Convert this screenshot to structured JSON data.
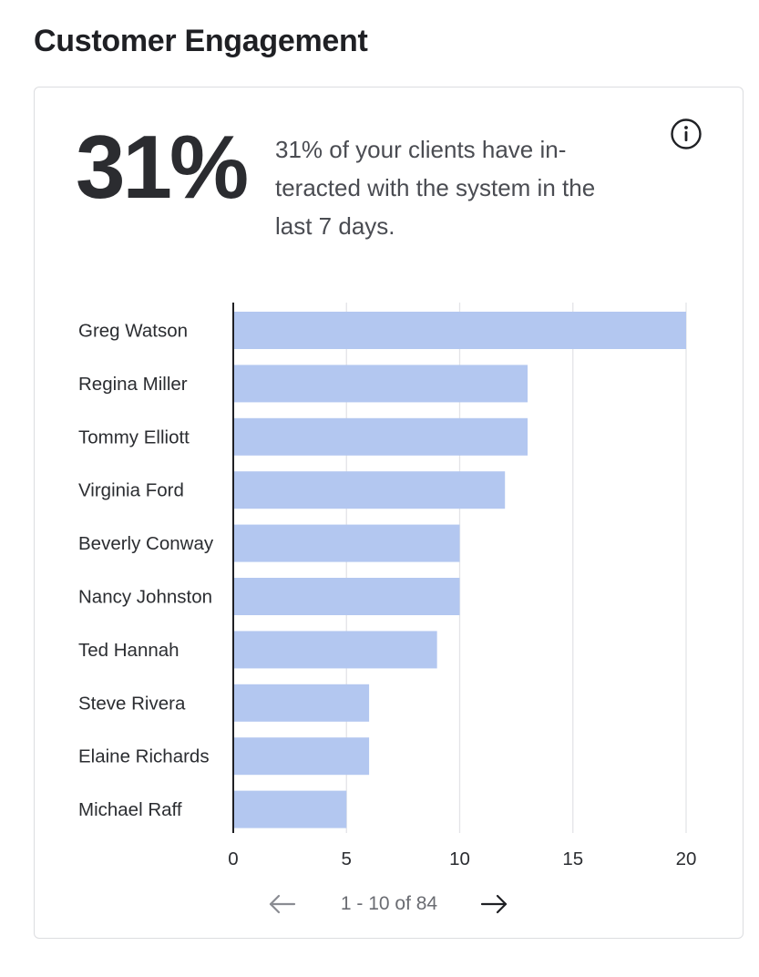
{
  "header": {
    "title": "Customer Engagement"
  },
  "summary": {
    "big_value": "31%",
    "description": "31% of your clients have in-teracted with the system in the last 7 days."
  },
  "icons": {
    "info": "info-icon",
    "prev": "arrow-left-icon",
    "next": "arrow-right-icon"
  },
  "chart_data": {
    "type": "bar",
    "orientation": "horizontal",
    "categories": [
      "Greg Watson",
      "Regina Miller",
      "Tommy Elliott",
      "Virginia Ford",
      "Beverly Conway",
      "Nancy Johnston",
      "Ted Hannah",
      "Steve Rivera",
      "Elaine Richards",
      "Michael Raff"
    ],
    "values": [
      20,
      13,
      13,
      12,
      10,
      10,
      9,
      6,
      6,
      5
    ],
    "xlim": [
      0,
      20
    ],
    "xticks": [
      0,
      5,
      10,
      15,
      20
    ],
    "grid": true,
    "bar_color": "#b1c6f0",
    "title": "",
    "xlabel": "",
    "ylabel": ""
  },
  "pagination": {
    "text": "1 - 10 of 84"
  },
  "colors": {
    "bar": "#b1c6f0",
    "grid": "#e3e4e7",
    "axis": "#1f2024",
    "text": "#2b2d31"
  }
}
